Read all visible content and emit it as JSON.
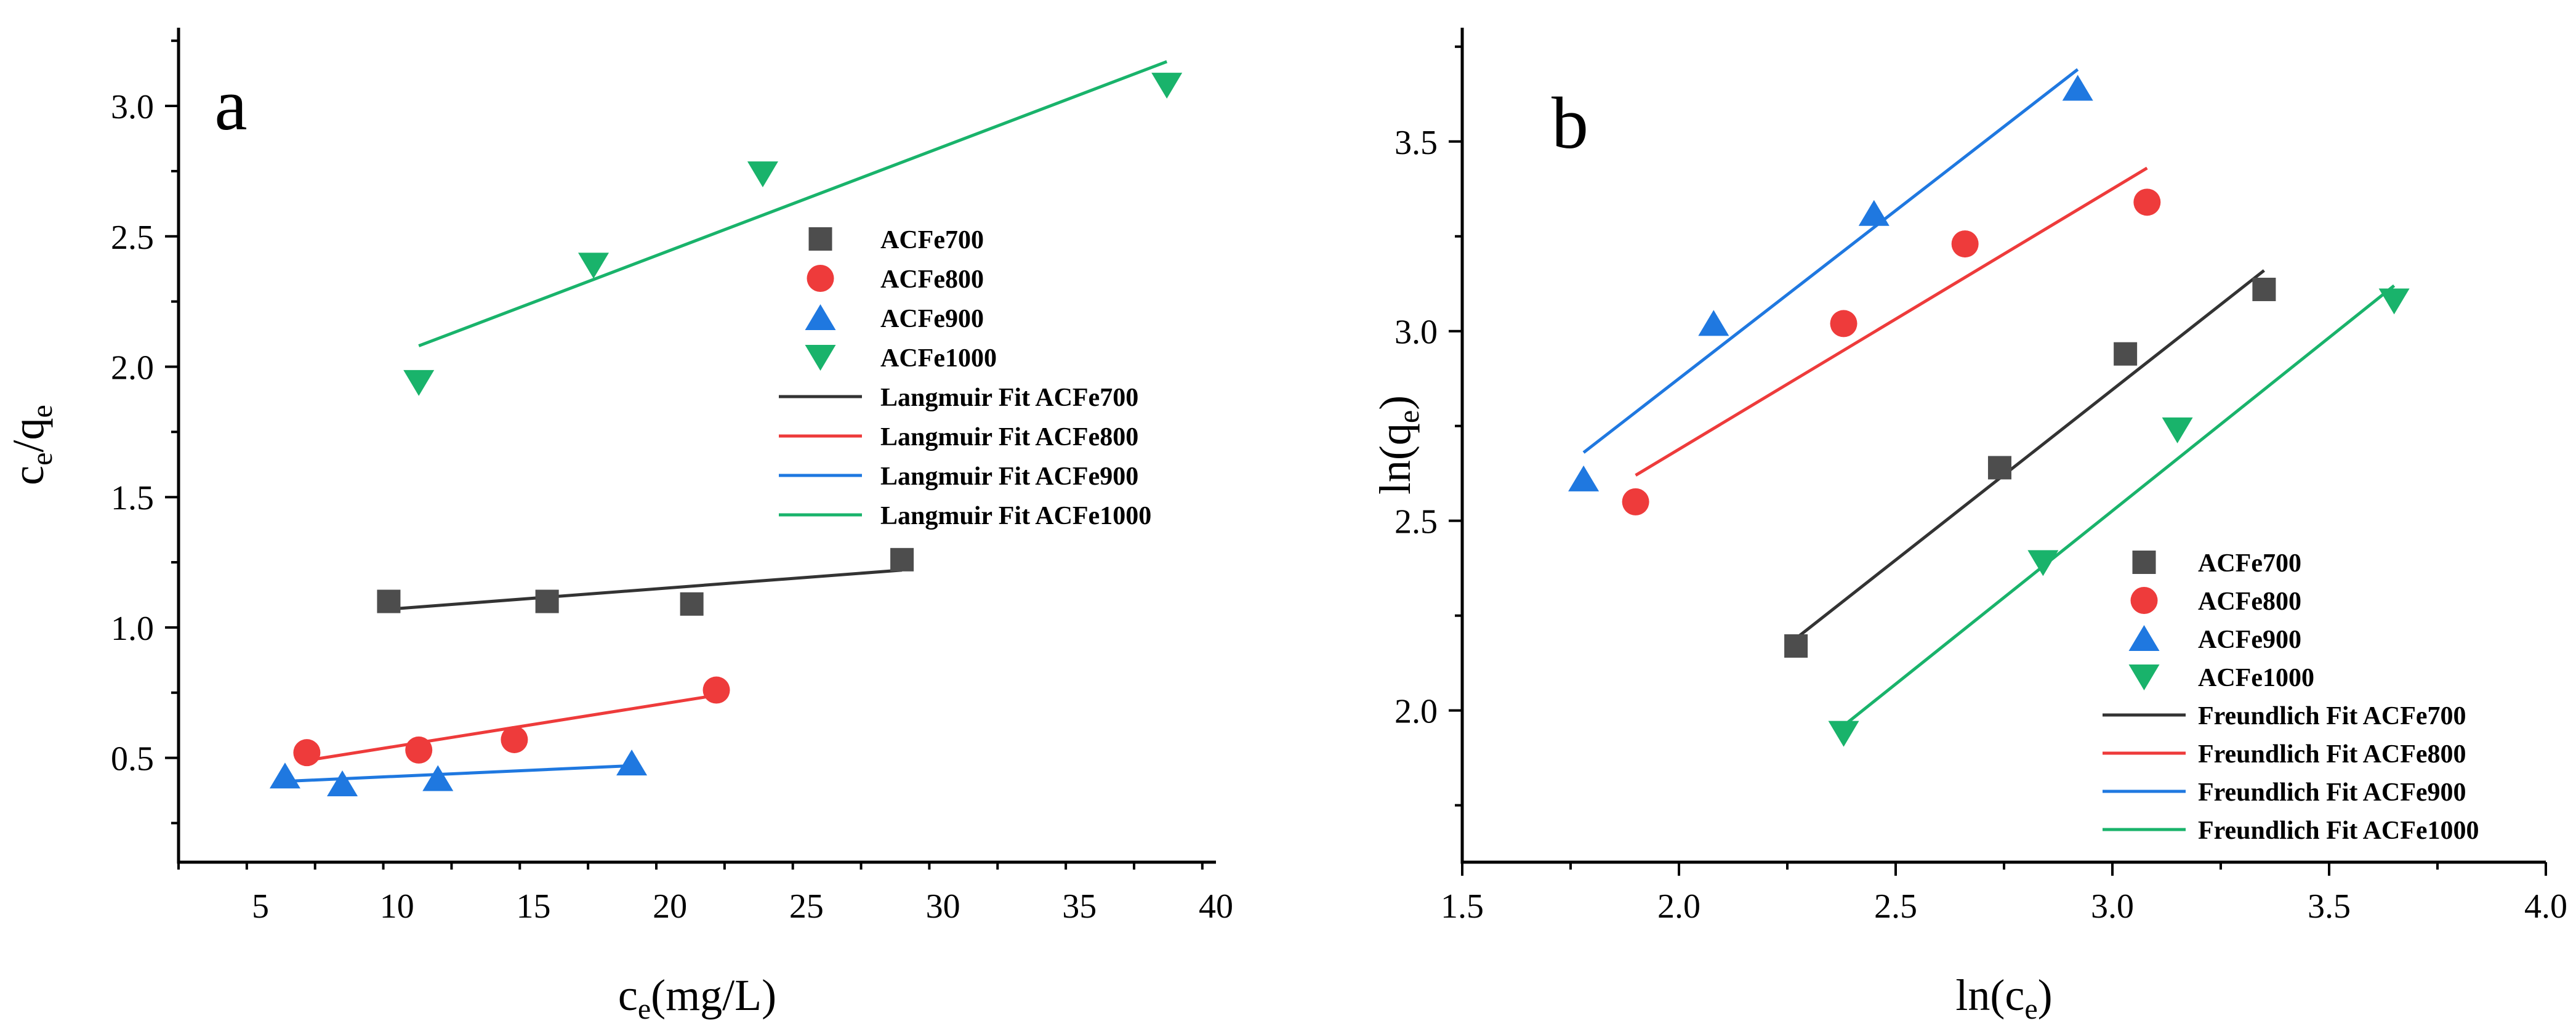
{
  "chart_data": [
    {
      "type": "scatter",
      "panel_label": "a",
      "xlabel": {
        "main": "c",
        "sub": "e",
        "tail": "(mg/L)"
      },
      "ylabel": {
        "main": "c",
        "sub1": "e",
        "mid": "/q",
        "sub2": "e"
      },
      "xlim": [
        2,
        40
      ],
      "ylim": [
        0.1,
        3.3
      ],
      "xticks": [
        5,
        10,
        15,
        20,
        25,
        30,
        35,
        40
      ],
      "xtick_labels": [
        "5",
        "10",
        "15",
        "20",
        "25",
        "30",
        "35",
        "40"
      ],
      "yticks": [
        0.5,
        1.0,
        1.5,
        2.0,
        2.5,
        3.0
      ],
      "ytick_labels": [
        "0.5",
        "1.0",
        "1.5",
        "2.0",
        "2.5",
        "3.0"
      ],
      "legend_position": "right-middle",
      "series": [
        {
          "name": "ACFe700",
          "marker": "square",
          "color": "#4d4d4d",
          "points": [
            [
              9.7,
              1.1
            ],
            [
              15.5,
              1.1
            ],
            [
              20.8,
              1.09
            ],
            [
              28.5,
              1.26
            ]
          ]
        },
        {
          "name": "ACFe800",
          "marker": "circle",
          "color": "#ee3b3b",
          "points": [
            [
              6.7,
              0.52
            ],
            [
              10.8,
              0.53
            ],
            [
              14.3,
              0.57
            ],
            [
              21.7,
              0.76
            ]
          ]
        },
        {
          "name": "ACFe900",
          "marker": "triangle-up",
          "color": "#1f78e0",
          "points": [
            [
              5.9,
              0.43
            ],
            [
              8.0,
              0.4
            ],
            [
              11.5,
              0.42
            ],
            [
              18.6,
              0.48
            ]
          ]
        },
        {
          "name": "ACFe1000",
          "marker": "triangle-down",
          "color": "#19b36b",
          "points": [
            [
              10.8,
              1.94
            ],
            [
              17.2,
              2.39
            ],
            [
              23.4,
              2.74
            ],
            [
              38.2,
              3.08
            ]
          ]
        }
      ],
      "fits": [
        {
          "name": "Langmuir Fit ACFe700",
          "color": "#333333",
          "from": [
            9.7,
            1.07
          ],
          "to": [
            28.5,
            1.22
          ]
        },
        {
          "name": "Langmuir Fit ACFe800",
          "color": "#ee3b3b",
          "from": [
            6.7,
            0.49
          ],
          "to": [
            21.7,
            0.74
          ]
        },
        {
          "name": "Langmuir Fit ACFe900",
          "color": "#1f78e0",
          "from": [
            5.9,
            0.41
          ],
          "to": [
            18.6,
            0.47
          ]
        },
        {
          "name": "Langmuir Fit ACFe1000",
          "color": "#19b36b",
          "from": [
            10.8,
            2.08
          ],
          "to": [
            38.2,
            3.17
          ]
        }
      ]
    },
    {
      "type": "scatter",
      "panel_label": "b",
      "xlabel": {
        "main": "ln(c",
        "sub": "e",
        "tail": ")"
      },
      "ylabel": {
        "main": "ln(q",
        "sub1": "e",
        "mid": ")",
        "sub2": ""
      },
      "xlim": [
        1.5,
        4.0
      ],
      "ylim": [
        1.6,
        3.8
      ],
      "xticks": [
        1.5,
        2.0,
        2.5,
        3.0,
        3.5,
        4.0
      ],
      "xtick_labels": [
        "1.5",
        "2.0",
        "2.5",
        "3.0",
        "3.5",
        "4.0"
      ],
      "yticks": [
        2.0,
        2.5,
        3.0,
        3.5
      ],
      "ytick_labels": [
        "2.0",
        "2.5",
        "3.0",
        "3.5"
      ],
      "legend_position": "bottom-right",
      "series": [
        {
          "name": "ACFe700",
          "marker": "square",
          "color": "#4d4d4d",
          "points": [
            [
              2.27,
              2.17
            ],
            [
              2.74,
              2.64
            ],
            [
              3.03,
              2.94
            ],
            [
              3.35,
              3.11
            ]
          ]
        },
        {
          "name": "ACFe800",
          "marker": "circle",
          "color": "#ee3b3b",
          "points": [
            [
              1.9,
              2.55
            ],
            [
              2.38,
              3.02
            ],
            [
              2.66,
              3.23
            ],
            [
              3.08,
              3.34
            ]
          ]
        },
        {
          "name": "ACFe900",
          "marker": "triangle-up",
          "color": "#1f78e0",
          "points": [
            [
              1.78,
              2.61
            ],
            [
              2.08,
              3.02
            ],
            [
              2.45,
              3.31
            ],
            [
              2.92,
              3.64
            ]
          ]
        },
        {
          "name": "ACFe1000",
          "marker": "triangle-down",
          "color": "#19b36b",
          "points": [
            [
              2.38,
              1.94
            ],
            [
              2.84,
              2.39
            ],
            [
              3.15,
              2.74
            ],
            [
              3.65,
              3.08
            ]
          ]
        }
      ],
      "fits": [
        {
          "name": "Freundlich Fit ACFe700",
          "color": "#333333",
          "from": [
            2.27,
            2.19
          ],
          "to": [
            3.35,
            3.16
          ]
        },
        {
          "name": "Freundlich Fit ACFe800",
          "color": "#ee3b3b",
          "from": [
            1.9,
            2.62
          ],
          "to": [
            3.08,
            3.43
          ]
        },
        {
          "name": "Freundlich Fit ACFe900",
          "color": "#1f78e0",
          "from": [
            1.78,
            2.68
          ],
          "to": [
            2.92,
            3.69
          ]
        },
        {
          "name": "Freundlich Fit ACFe1000",
          "color": "#19b36b",
          "from": [
            2.38,
            1.96
          ],
          "to": [
            3.65,
            3.12
          ]
        }
      ]
    }
  ]
}
